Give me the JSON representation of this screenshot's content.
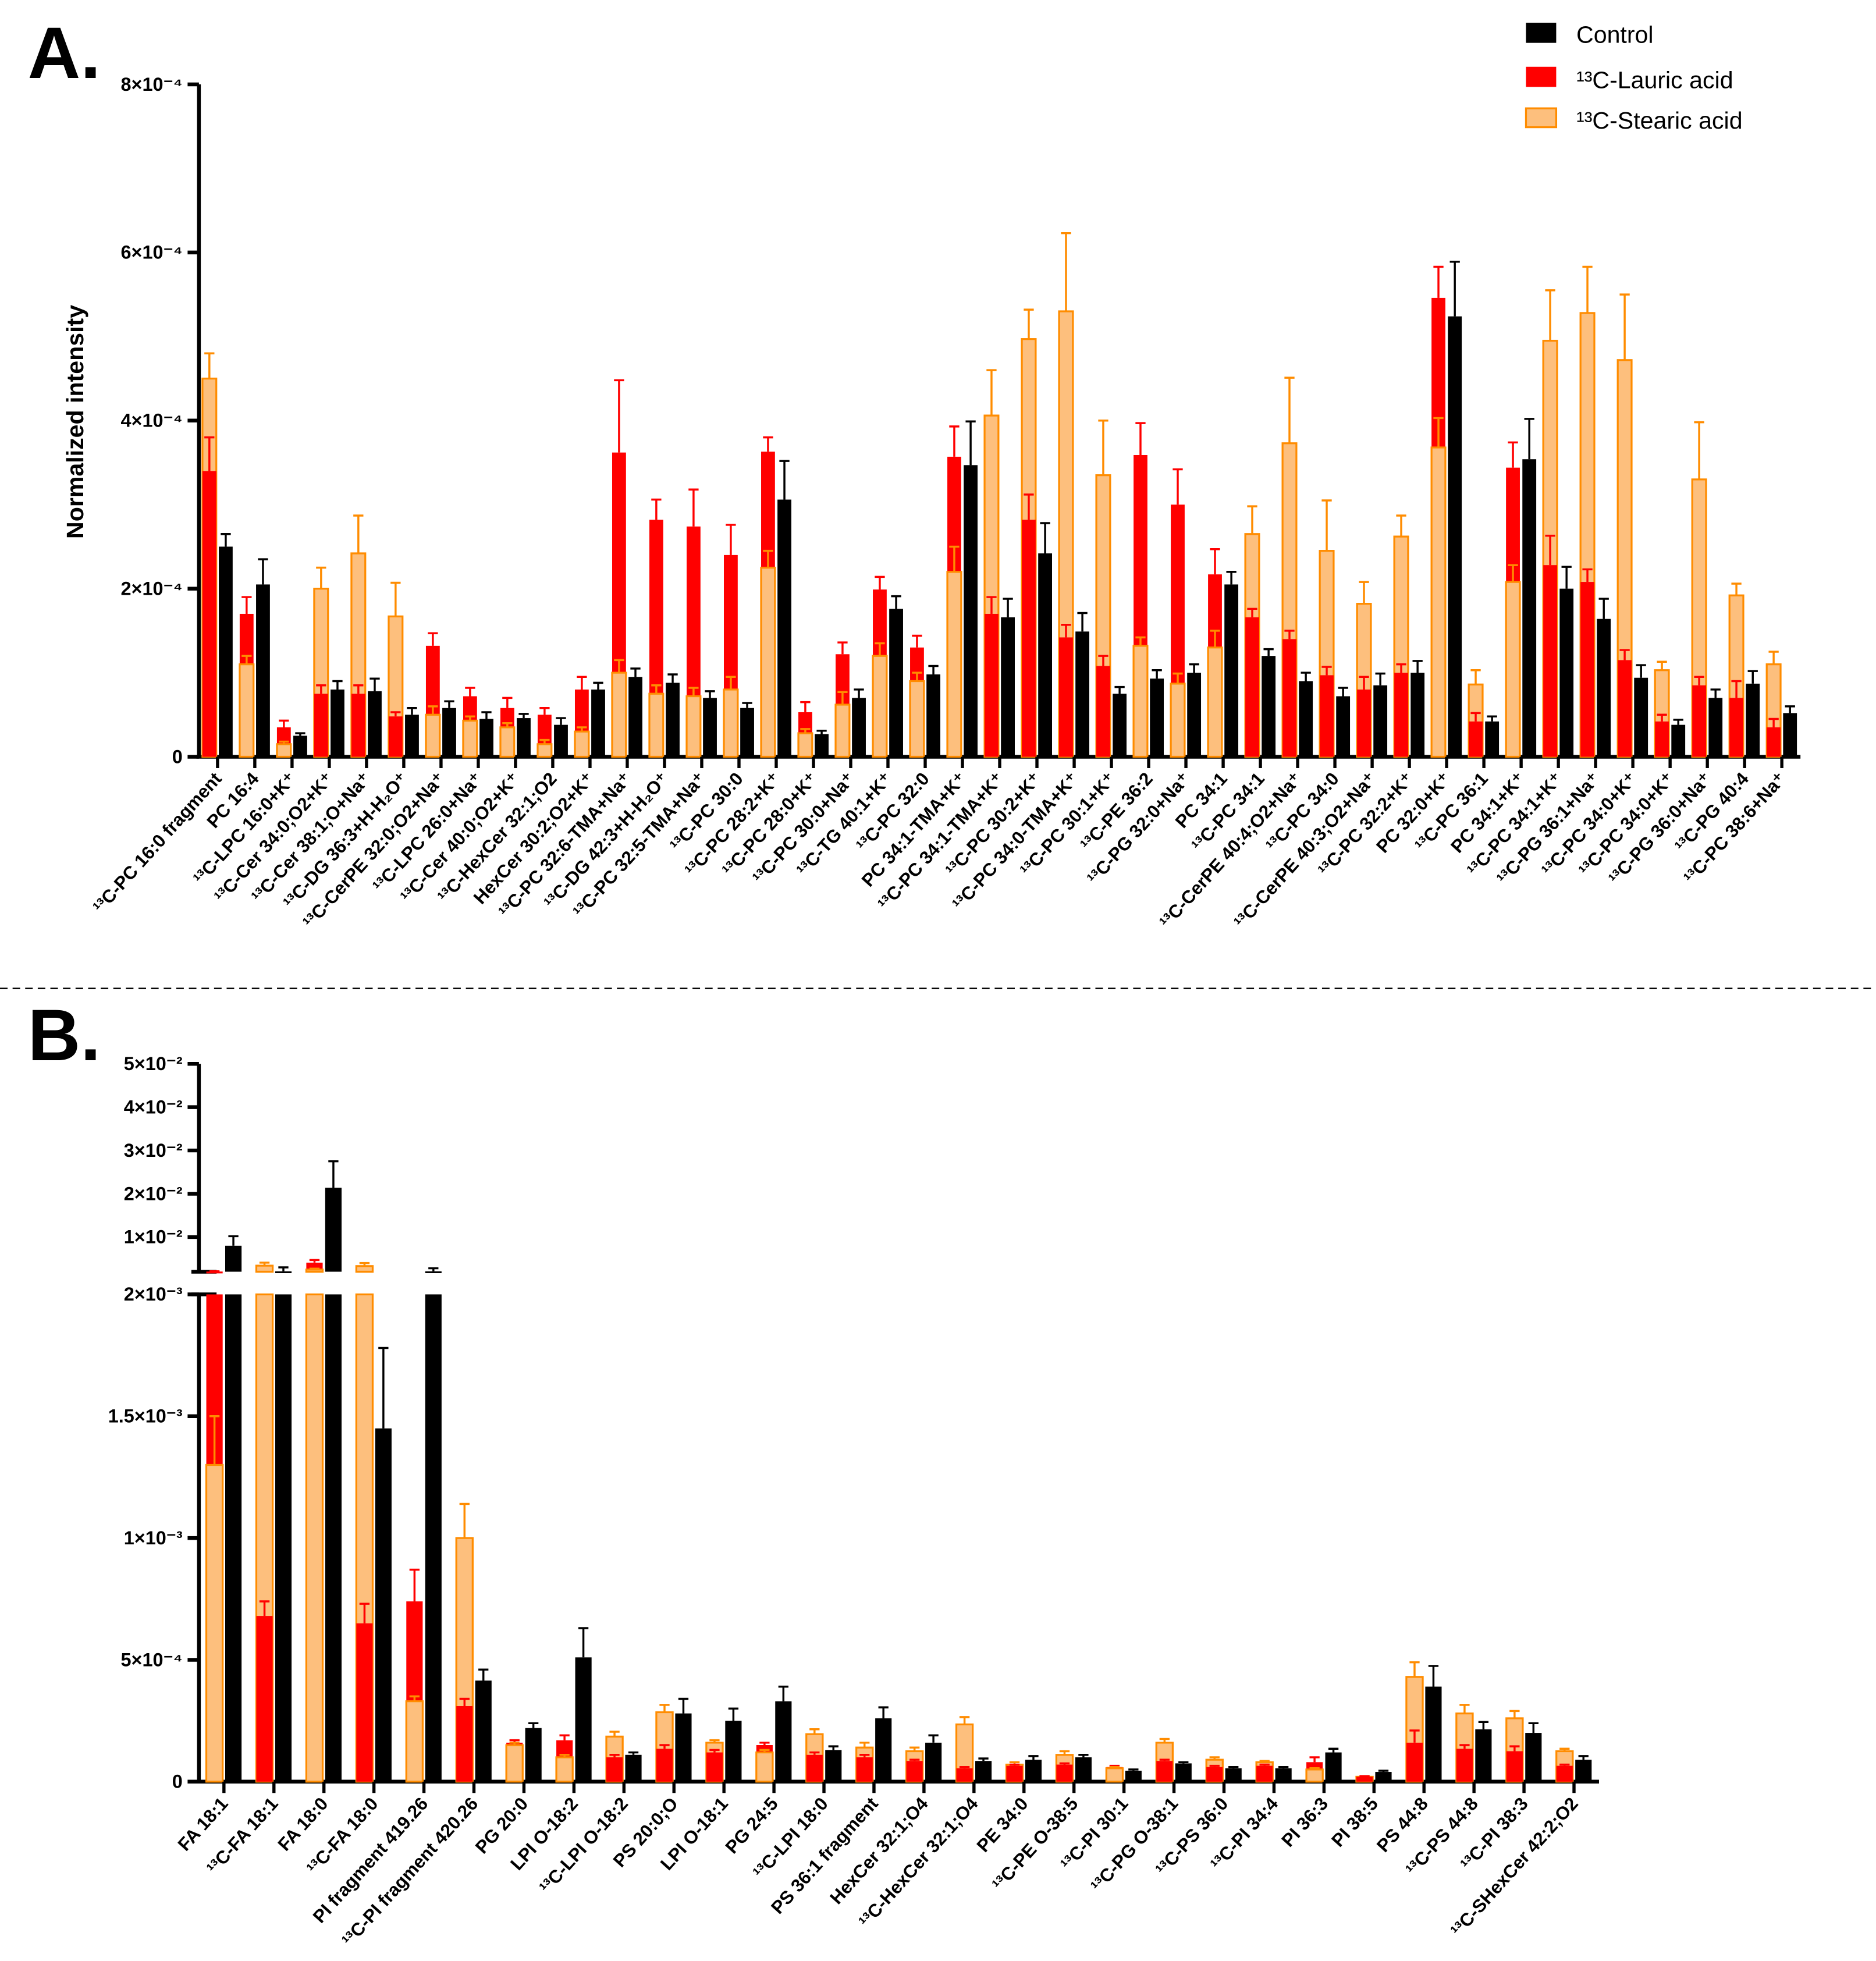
{
  "legend": {
    "control": "Control",
    "lauric": "¹³C-Lauric acid",
    "stearic": "¹³C-Stearic acid"
  },
  "colors": {
    "control": "#000000",
    "lauric": "#ff0000",
    "stearic_fill": "#fdbf7d",
    "stearic_edge": "#ff8c00"
  },
  "chart_data": [
    {
      "panel": "A.",
      "type": "bar",
      "ylabel": "Normalized intensity",
      "unit_multiplier": 0.0001,
      "ylim": [
        0,
        8
      ],
      "yticks": [
        {
          "v": 0,
          "label": "0"
        },
        {
          "v": 2,
          "label": "2×10⁻⁴"
        },
        {
          "v": 4,
          "label": "4×10⁻⁴"
        },
        {
          "v": 6,
          "label": "6×10⁻⁴"
        },
        {
          "v": 8,
          "label": "8×10⁻⁴"
        }
      ],
      "categories": [
        "¹³C-PC 16:0 fragment",
        "PC 16:4",
        "¹³C-LPC 16:0+K⁺",
        "¹³C-Cer 34:0;O2+K⁺",
        "¹³C-Cer 38:1;O+Na⁺",
        "¹³C-DG 36:3+H-H₂O⁺",
        "¹³C-CerPE 32:0;O2+Na⁺",
        "¹³C-LPC 26:0+Na⁺",
        "¹³C-Cer 40:0;O2+K⁺",
        "¹³C-HexCer 32:1;O2",
        "HexCer 30:2;O2+K⁺",
        "¹³C-PC 32:6-TMA+Na⁺",
        "¹³C-DG 42:3+H-H₂O⁺",
        "¹³C-PC 32:5-TMA+Na⁺",
        "¹³C-PC 30:0",
        "¹³C-PC 28:2+K⁺",
        "¹³C-PC 28:0+K⁺",
        "¹³C-PC 30:0+Na⁺",
        "¹³C-TG 40:1+K⁺",
        "¹³C-PC 32:0",
        "PC 34:1-TMA+K⁺",
        "¹³C-PC 34:1-TMA+K⁺",
        "¹³C-PC 30:2+K⁺",
        "¹³C-PC 34:0-TMA+K⁺",
        "¹³C-PC 30:1+K⁺",
        "¹³C-PE 36:2",
        "¹³C-PG 32:0+Na⁺",
        "PC 34:1",
        "¹³C-PC 34:1",
        "¹³C-CerPE 40:4;O2+Na⁺",
        "¹³C-PC 34:0",
        "¹³C-CerPE 40:3;O2+Na⁺",
        "¹³C-PC 32:2+K⁺",
        "PC 32:0+K⁺",
        "¹³C-PC 36:1",
        "PC 34:1+K⁺",
        "¹³C-PC 34:1+K⁺",
        "¹³C-PG 36:1+Na⁺",
        "¹³C-PC 34:0+K⁺",
        "¹³C-PC 34:0+K⁺",
        "¹³C-PG 36:0+Na⁺",
        "¹³C-PG 40:4",
        "¹³C-PC 38:6+Na⁺"
      ],
      "series": [
        {
          "name": "¹³C-Stearic acid",
          "values": [
            4.5,
            1.1,
            0.15,
            2.0,
            2.42,
            1.67,
            0.5,
            0.43,
            0.35,
            0.15,
            0.3,
            1.0,
            0.75,
            0.72,
            0.8,
            2.25,
            0.28,
            0.62,
            1.2,
            0.9,
            2.2,
            4.06,
            4.97,
            5.3,
            3.35,
            1.32,
            0.87,
            1.3,
            2.65,
            3.73,
            2.45,
            1.82,
            2.62,
            3.68,
            0.86,
            2.08,
            4.95,
            5.28,
            4.72,
            1.03,
            3.3,
            1.92,
            1.1
          ],
          "errors": [
            0.3,
            0.1,
            0.03,
            0.25,
            0.45,
            0.4,
            0.1,
            0.05,
            0.05,
            0.05,
            0.05,
            0.15,
            0.1,
            0.1,
            0.15,
            0.2,
            0.05,
            0.15,
            0.15,
            0.1,
            0.3,
            0.54,
            0.35,
            0.93,
            0.65,
            0.1,
            0.12,
            0.2,
            0.33,
            0.78,
            0.6,
            0.26,
            0.25,
            0.35,
            0.17,
            0.2,
            0.6,
            0.55,
            0.78,
            0.1,
            0.68,
            0.14,
            0.15
          ]
        },
        {
          "name": "¹³C-Lauric acid",
          "values": [
            3.4,
            1.7,
            0.35,
            0.75,
            0.75,
            0.48,
            1.32,
            0.72,
            0.58,
            0.5,
            0.8,
            3.62,
            2.82,
            2.74,
            2.4,
            3.63,
            0.53,
            1.22,
            1.99,
            1.3,
            3.57,
            1.7,
            2.82,
            1.42,
            1.08,
            3.59,
            3.0,
            2.17,
            1.66,
            1.4,
            0.97,
            0.8,
            1.0,
            5.46,
            0.42,
            3.44,
            2.28,
            2.08,
            1.15,
            0.42,
            0.85,
            0.7,
            0.35
          ],
          "errors": [
            0.4,
            0.2,
            0.08,
            0.1,
            0.1,
            0.05,
            0.15,
            0.1,
            0.12,
            0.08,
            0.15,
            0.86,
            0.24,
            0.44,
            0.36,
            0.17,
            0.12,
            0.14,
            0.15,
            0.14,
            0.36,
            0.2,
            0.3,
            0.15,
            0.12,
            0.38,
            0.42,
            0.3,
            0.1,
            0.1,
            0.1,
            0.15,
            0.1,
            0.37,
            0.1,
            0.3,
            0.35,
            0.15,
            0.12,
            0.08,
            0.1,
            0.2,
            0.1
          ]
        },
        {
          "name": "Control",
          "values": [
            2.5,
            2.05,
            0.25,
            0.8,
            0.78,
            0.5,
            0.58,
            0.45,
            0.46,
            0.38,
            0.8,
            0.95,
            0.88,
            0.7,
            0.58,
            3.06,
            0.27,
            0.7,
            1.76,
            0.98,
            3.47,
            1.66,
            2.42,
            1.49,
            0.75,
            0.93,
            1.0,
            2.05,
            1.2,
            0.9,
            0.72,
            0.85,
            1.0,
            5.24,
            0.42,
            3.54,
            2.0,
            1.64,
            0.94,
            0.38,
            0.7,
            0.87,
            0.52
          ],
          "errors": [
            0.15,
            0.3,
            0.03,
            0.1,
            0.15,
            0.08,
            0.08,
            0.08,
            0.05,
            0.08,
            0.08,
            0.1,
            0.1,
            0.08,
            0.06,
            0.46,
            0.04,
            0.1,
            0.15,
            0.1,
            0.52,
            0.22,
            0.36,
            0.22,
            0.08,
            0.1,
            0.1,
            0.15,
            0.08,
            0.1,
            0.1,
            0.14,
            0.14,
            0.65,
            0.06,
            0.48,
            0.26,
            0.24,
            0.15,
            0.06,
            0.1,
            0.15,
            0.08
          ]
        }
      ]
    },
    {
      "panel": "B.",
      "type": "bar",
      "unit_multiplier": 0.0001,
      "axis_break": [
        20,
        20
      ],
      "ylim": [
        0,
        500
      ],
      "yticks": [
        {
          "v": 0,
          "label": "0"
        },
        {
          "v": 5,
          "label": "5×10⁻⁴"
        },
        {
          "v": 10,
          "label": "1×10⁻³"
        },
        {
          "v": 15,
          "label": "1.5×10⁻³"
        },
        {
          "v": 20,
          "label": "2×10⁻³"
        },
        {
          "v": 100,
          "label": "1×10⁻²"
        },
        {
          "v": 200,
          "label": "2×10⁻²"
        },
        {
          "v": 300,
          "label": "3×10⁻²"
        },
        {
          "v": 400,
          "label": "4×10⁻²"
        },
        {
          "v": 500,
          "label": "5×10⁻²"
        }
      ],
      "categories": [
        "FA 18:1",
        "¹³C-FA 18:1",
        "FA 18:0",
        "¹³C-FA 18:0",
        "PI fragment 419.26",
        "¹³C-PI fragment 420.26",
        "PG 20:0",
        "LPI O-18:2",
        "¹³C-LPI O-18:2",
        "PS 20:0;O",
        "LPI O-18:1",
        "PG 24:5",
        "¹³C-LPI 18:0",
        "PS 36:1 fragment",
        "HexCer 32:1;O4",
        "¹³C-HexCer 32:1;O4",
        "PE 34:0",
        "¹³C-PE O-38:5",
        "¹³C-PI 30:1",
        "¹³C-PG O-38:1",
        "¹³C-PS 36:0",
        "¹³C-PI 34:4",
        "PI 36:3",
        "PI 38:5",
        "PS 44:8",
        "¹³C-PS 44:8",
        "¹³C-PI 38:3",
        "¹³C-SHexCer 42:2;O2"
      ],
      "series": [
        {
          "name": "¹³C-Stearic acid",
          "values": [
            13,
            34,
            25,
            33,
            3.3,
            10,
            1.5,
            1.0,
            1.85,
            2.85,
            1.6,
            1.2,
            1.95,
            1.4,
            1.25,
            2.35,
            0.7,
            1.1,
            0.55,
            1.6,
            0.9,
            0.8,
            0.5,
            0.2,
            4.3,
            2.8,
            2.6,
            1.25
          ],
          "errors": [
            2,
            7,
            2,
            7,
            0.2,
            1.4,
            0.1,
            0.1,
            0.2,
            0.3,
            0.1,
            0.1,
            0.2,
            0.2,
            0.15,
            0.3,
            0.1,
            0.15,
            0.05,
            0.15,
            0.1,
            0.05,
            0.05,
            0.03,
            0.6,
            0.35,
            0.3,
            0.1
          ]
        },
        {
          "name": "¹³C-Lauric acid",
          "values": [
            20.5,
            6.8,
            41,
            6.5,
            7.4,
            3.1,
            1.6,
            1.7,
            1.0,
            1.35,
            1.2,
            1.5,
            1.1,
            1.0,
            0.85,
            0.55,
            0.65,
            0.7,
            0.6,
            0.85,
            0.6,
            0.65,
            0.8,
            0.2,
            1.6,
            1.35,
            1.25,
            0.65
          ],
          "errors": [
            0.5,
            0.6,
            6,
            0.8,
            1.3,
            0.3,
            0.1,
            0.2,
            0.1,
            0.15,
            0.1,
            0.1,
            0.1,
            0.1,
            0.05,
            0.05,
            0.05,
            0.05,
            0.05,
            0.05,
            0.05,
            0.05,
            0.2,
            0.03,
            0.5,
            0.15,
            0.2,
            0.05
          ]
        },
        {
          "name": "Control",
          "values": [
            80,
            21,
            214,
            14.5,
            21,
            4.15,
            2.2,
            5.1,
            1.1,
            2.8,
            2.5,
            3.3,
            1.3,
            2.6,
            1.6,
            0.85,
            0.9,
            1.0,
            0.45,
            0.75,
            0.55,
            0.55,
            1.2,
            0.4,
            3.9,
            2.15,
            2.0,
            0.9
          ],
          "errors": [
            22,
            9,
            61,
            3.3,
            7,
            0.45,
            0.2,
            1.2,
            0.1,
            0.6,
            0.5,
            0.6,
            0.15,
            0.45,
            0.3,
            0.1,
            0.15,
            0.1,
            0.05,
            0.05,
            0.05,
            0.05,
            0.15,
            0.05,
            0.85,
            0.3,
            0.4,
            0.15
          ]
        }
      ]
    }
  ]
}
